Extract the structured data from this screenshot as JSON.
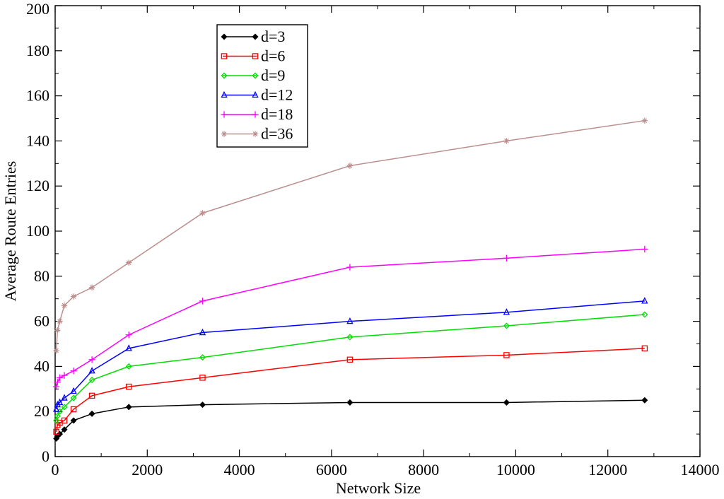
{
  "chart_data": {
    "type": "line",
    "title": "",
    "xlabel": "Network Size",
    "ylabel": "Average Route Entries",
    "xlim": [
      0,
      14000
    ],
    "ylim": [
      0,
      200
    ],
    "x_ticks": [
      0,
      2000,
      4000,
      6000,
      8000,
      10000,
      12000,
      14000
    ],
    "y_ticks": [
      0,
      20,
      40,
      60,
      80,
      100,
      120,
      140,
      160,
      180,
      200
    ],
    "x_tick_labels": [
      "0",
      "2000",
      "4000",
      "6000",
      "8000",
      "10000",
      "12000",
      "14000"
    ],
    "y_tick_labels": [
      "0",
      "20",
      "40",
      "60",
      "80",
      "100",
      "120",
      "140",
      "160",
      "180",
      "200"
    ],
    "grid": false,
    "legend_position": "top-left",
    "x": [
      25,
      50,
      100,
      200,
      400,
      800,
      1600,
      3200,
      6400,
      9800,
      12800
    ],
    "series": [
      {
        "name": "d=3",
        "color": "#000000",
        "marker": "diamond",
        "values": [
          8,
          9,
          10,
          12,
          16,
          19,
          22,
          23,
          24,
          24,
          25
        ]
      },
      {
        "name": "d=6",
        "color": "#ff0000",
        "marker": "square",
        "values": [
          11,
          14,
          15,
          16,
          21,
          27,
          31,
          35,
          43,
          45,
          48
        ]
      },
      {
        "name": "d=9",
        "color": "#00dd00",
        "marker": "diamond",
        "values": [
          16,
          18,
          20,
          22,
          26,
          34,
          40,
          44,
          53,
          58,
          63
        ]
      },
      {
        "name": "d=12",
        "color": "#0000ff",
        "marker": "triangle",
        "values": [
          21,
          23,
          24,
          26,
          29,
          38,
          48,
          55,
          60,
          64,
          69
        ]
      },
      {
        "name": "d=18",
        "color": "#ff00ff",
        "marker": "plus",
        "values": [
          31,
          33,
          35,
          36,
          38,
          43,
          54,
          69,
          84,
          88,
          92
        ]
      },
      {
        "name": "d=36",
        "color": "#bc8f8f",
        "marker": "star",
        "values": [
          47,
          56,
          60,
          67,
          71,
          75,
          86,
          108,
          129,
          140,
          149
        ]
      }
    ]
  }
}
